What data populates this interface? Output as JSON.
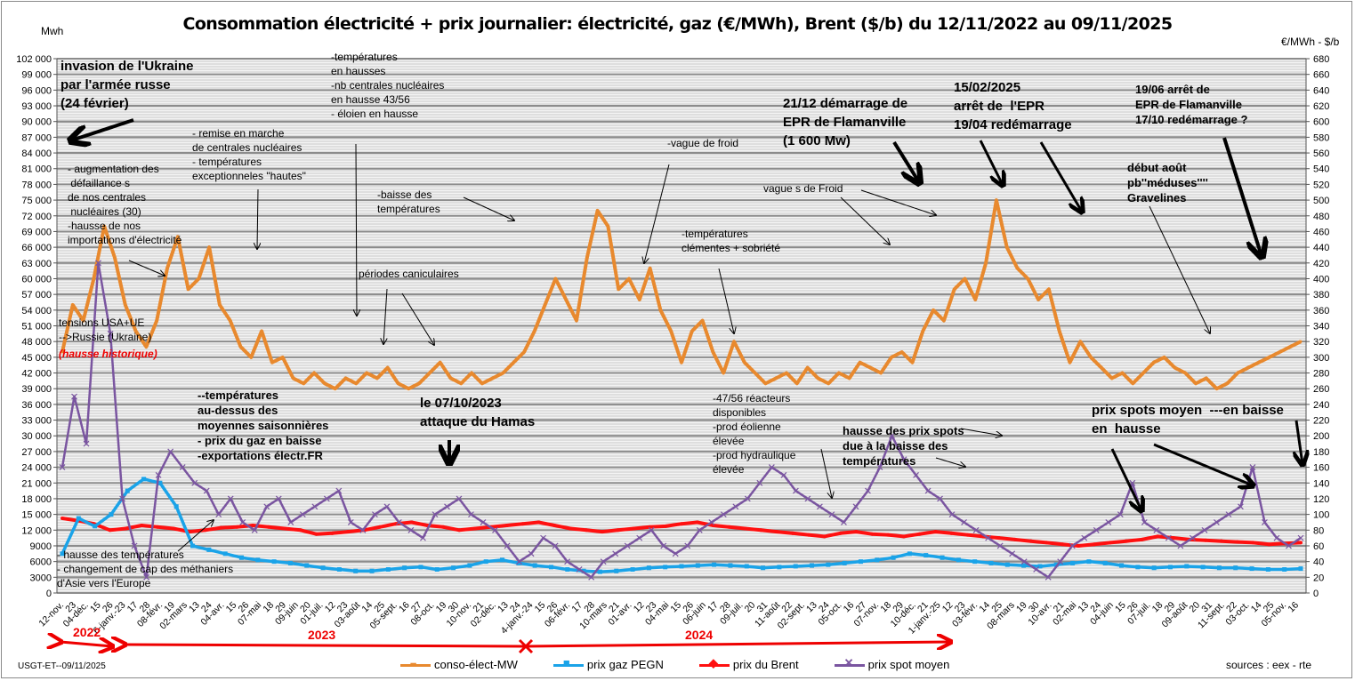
{
  "header": {
    "title": "Consommation électricité + prix journalier: électricité, gaz (€/MWh), Brent ($/b) du 12/11/2022 au 09/11/2025",
    "left_unit": "Mwh",
    "right_unit": "€/MWh - $/b"
  },
  "footer": {
    "credit": "USGT-ET--09/11/2025",
    "sources": "sources : eex - rte"
  },
  "years": [
    {
      "label": "2022"
    },
    {
      "label": "2023"
    },
    {
      "label": "2024"
    }
  ],
  "annotations": [
    {
      "id": "ukraine",
      "text": "invasion de l'Ukraine\npar l'armée russe\n(24 février)"
    },
    {
      "id": "defaillances",
      "text": "- augmentation des\n défaillance s\nde nos centrales\n nucléaires (30)\n-hausse de nos\nimportations d'électricité"
    },
    {
      "id": "remise",
      "text": "- remise en marche\nde centrales nucléaires\n- températures\nexceptionneles \"hautes\""
    },
    {
      "id": "temp-hausses",
      "text": "-températures\nen hausses\n-nb centrales nucléaires\nen hausse 43/56\n- éloien en hausse"
    },
    {
      "id": "baisse-temp",
      "text": "-baisse des\ntempératures"
    },
    {
      "id": "caniculaires",
      "text": "périodes caniculaires"
    },
    {
      "id": "tensions",
      "text": "tensions USA+UE\n-->Russie (Ukraine)"
    },
    {
      "id": "hausse-historique",
      "text": "(hausse historique)"
    },
    {
      "id": "temp-dessus",
      "text": "--températures\nau-dessus des\nmoyennes saisonnières\n- prix du gaz en baisse\n-exportations électr.FR"
    },
    {
      "id": "hamas",
      "text": "le 07/10/2023\nattaque du Hamas"
    },
    {
      "id": "methaniers",
      "text": "- hausse des températures\n- changement de cap des méthaniers\nd'Asie vers l'Europe"
    },
    {
      "id": "vague-froid",
      "text": "-vague de froid"
    },
    {
      "id": "clementes",
      "text": "-températures\nclémentes + sobriété"
    },
    {
      "id": "reacteurs",
      "text": "-47/56 réacteurs\ndisponibles\n-prod éolienne\nélevée\n-prod hydraulique\nélevée"
    },
    {
      "id": "epr-start",
      "text": "21/12 démarrage de\nEPR de Flamanville\n(1 600 Mw)"
    },
    {
      "id": "vagues-froid",
      "text": "vague s de Froid"
    },
    {
      "id": "epr-stop",
      "text": "15/02/2025\narrêt de  l'EPR\n19/04 redémarrage"
    },
    {
      "id": "epr-stop2",
      "text": "19/06 arrêt de\nEPR de Flamanville\n17/10 redémarrage ?"
    },
    {
      "id": "meduses",
      "text": "début août\npb''méduses''''\nGravelines"
    },
    {
      "id": "spots-hausse",
      "text": "hausse des prix spots\ndue à la baisse des\ntempératures"
    },
    {
      "id": "spots-moyen",
      "text": "prix spots moyen  ---en baisse\nen  hausse"
    }
  ],
  "chart_data": {
    "type": "line",
    "title": "Consommation électricité + prix journalier: électricité, gaz (€/MWh), Brent ($/b) du 12/11/2022 au 09/11/2025",
    "ylabel": "Mwh",
    "y2label": "€/MWh - $/b",
    "ylim": [
      0,
      102000
    ],
    "y2lim": [
      0,
      680
    ],
    "y_ticks": [
      "0",
      "3000",
      "6000",
      "9000",
      "12 000",
      "15 000",
      "18 000",
      "21 000",
      "24 000",
      "27 000",
      "30 000",
      "33 000",
      "36 000",
      "39 000",
      "42 000",
      "45 000",
      "48 000",
      "51 000",
      "54 000",
      "57 000",
      "60 000",
      "63 000",
      "66 000",
      "69 000",
      "72 000",
      "75 000",
      "78 000",
      "81 000",
      "84 000",
      "87 000",
      "90 000",
      "93 000",
      "96 000",
      "99 000",
      "102 000"
    ],
    "y2_ticks": [
      "0",
      "20",
      "40",
      "60",
      "80",
      "100",
      "120",
      "140",
      "160",
      "180",
      "200",
      "220",
      "240",
      "260",
      "280",
      "300",
      "320",
      "340",
      "360",
      "380",
      "400",
      "420",
      "440",
      "460",
      "480",
      "500",
      "520",
      "540",
      "560",
      "580",
      "600",
      "620",
      "640",
      "660",
      "680"
    ],
    "x_tick_labels": [
      "12-nov.",
      "23",
      "04-déc.",
      "15",
      "26",
      "6-janv.-23",
      "17",
      "28",
      "08-févr.",
      "19",
      "02-mars",
      "13",
      "24",
      "04-avr.",
      "15",
      "26",
      "07-mai",
      "18",
      "29",
      "09-juin",
      "20",
      "01-juil.",
      "12",
      "23",
      "03-août",
      "14",
      "25",
      "05-sept.",
      "16",
      "27",
      "08-oct.",
      "19",
      "30",
      "10-nov.",
      "21",
      "02-déc.",
      "13",
      "24",
      "4-janv.-24",
      "15",
      "26",
      "06-févr.",
      "17",
      "28",
      "10-mars",
      "21",
      "01-avr.",
      "12",
      "23",
      "04-mai",
      "15",
      "26",
      "06-juin",
      "17",
      "28",
      "09-juil.",
      "20",
      "31",
      "11-août",
      "22",
      "02-sept.",
      "13",
      "24",
      "05-oct.",
      "16",
      "27",
      "07-nov.",
      "18",
      "29",
      "10-déc.",
      "21",
      "1-janv.-25",
      "12",
      "23",
      "03-févr.",
      "14",
      "25",
      "08-mars",
      "19",
      "30",
      "10-avr.",
      "21",
      "02-mai",
      "13",
      "24",
      "04-juin",
      "15",
      "26",
      "07-juil.",
      "18",
      "29",
      "09-août",
      "20",
      "31",
      "11-sept.",
      "22",
      "03-oct.",
      "14",
      "25",
      "05-nov.",
      "16"
    ],
    "legend_position": "bottom",
    "grid": true,
    "series": [
      {
        "name": "conso-élect-MW",
        "axis": "left",
        "color": "#e8892e",
        "marker": "dash",
        "values": [
          46000,
          55000,
          52000,
          60000,
          70000,
          64000,
          55000,
          50000,
          47000,
          52000,
          62000,
          68000,
          58000,
          60000,
          66000,
          55000,
          52000,
          47000,
          45000,
          50000,
          44000,
          45000,
          41000,
          40000,
          42000,
          40000,
          39000,
          41000,
          40000,
          42000,
          41000,
          43000,
          40000,
          39000,
          40000,
          42000,
          44000,
          41000,
          40000,
          42000,
          40000,
          41000,
          42000,
          44000,
          46000,
          50000,
          55000,
          60000,
          56000,
          52000,
          64000,
          73000,
          70000,
          58000,
          60000,
          56000,
          62000,
          54000,
          50000,
          44000,
          50000,
          52000,
          46000,
          42000,
          48000,
          44000,
          42000,
          40000,
          41000,
          42000,
          40000,
          43000,
          41000,
          40000,
          42000,
          41000,
          44000,
          43000,
          42000,
          45000,
          46000,
          44000,
          50000,
          54000,
          52000,
          58000,
          60000,
          56000,
          63000,
          75000,
          66000,
          62000,
          60000,
          56000,
          58000,
          50000,
          44000,
          48000,
          45000,
          43000,
          41000,
          42000,
          40000,
          42000,
          44000,
          45000,
          43000,
          42000,
          40000,
          41000,
          39000,
          40000,
          42000,
          43000,
          44000,
          45000,
          46000,
          47000,
          48000
        ]
      },
      {
        "name": "prix gaz PEGN",
        "axis": "right",
        "color": "#1aa3e8",
        "marker": "square",
        "values": [
          50,
          95,
          85,
          100,
          130,
          145,
          140,
          110,
          60,
          55,
          50,
          45,
          42,
          40,
          38,
          35,
          32,
          30,
          28,
          28,
          30,
          32,
          33,
          30,
          32,
          35,
          40,
          42,
          38,
          35,
          33,
          30,
          28,
          27,
          28,
          30,
          32,
          33,
          34,
          35,
          36,
          35,
          34,
          32,
          33,
          34,
          35,
          36,
          38,
          40,
          42,
          45,
          50,
          48,
          45,
          42,
          40,
          38,
          36,
          35,
          34,
          36,
          38,
          40,
          38,
          35,
          33,
          32,
          33,
          34,
          33,
          32,
          32,
          31,
          30,
          30,
          31
        ]
      },
      {
        "name": "prix du Brent",
        "axis": "right",
        "color": "#ff1010",
        "marker": "diamond",
        "values": [
          95,
          92,
          88,
          80,
          82,
          86,
          84,
          82,
          78,
          80,
          83,
          84,
          86,
          84,
          82,
          80,
          75,
          76,
          78,
          80,
          84,
          88,
          90,
          86,
          84,
          80,
          82,
          84,
          86,
          88,
          90,
          86,
          82,
          80,
          78,
          80,
          82,
          84,
          85,
          88,
          90,
          86,
          84,
          82,
          80,
          78,
          76,
          74,
          72,
          76,
          78,
          75,
          74,
          72,
          75,
          78,
          76,
          74,
          72,
          70,
          68,
          66,
          64,
          62,
          60,
          62,
          64,
          66,
          68,
          72,
          70,
          68,
          67,
          66,
          65,
          64,
          62,
          63,
          64
        ]
      },
      {
        "name": "prix spot moyen",
        "axis": "right",
        "color": "#7a55a0",
        "marker": "x",
        "values": [
          160,
          250,
          190,
          420,
          330,
          120,
          60,
          20,
          150,
          180,
          160,
          140,
          130,
          100,
          120,
          90,
          80,
          110,
          120,
          90,
          100,
          110,
          120,
          130,
          90,
          80,
          100,
          110,
          90,
          80,
          70,
          100,
          110,
          120,
          100,
          90,
          80,
          60,
          40,
          50,
          70,
          60,
          40,
          30,
          20,
          40,
          50,
          60,
          70,
          80,
          60,
          50,
          60,
          80,
          90,
          100,
          110,
          120,
          140,
          160,
          150,
          130,
          120,
          110,
          100,
          90,
          110,
          130,
          160,
          200,
          170,
          150,
          130,
          120,
          100,
          90,
          80,
          70,
          60,
          50,
          40,
          30,
          20,
          40,
          60,
          70,
          80,
          90,
          100,
          140,
          90,
          80,
          70,
          60,
          70,
          80,
          90,
          100,
          110,
          160,
          90,
          70,
          60,
          70
        ]
      }
    ]
  }
}
